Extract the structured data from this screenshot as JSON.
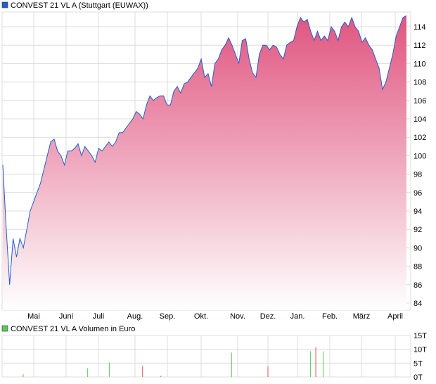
{
  "chart_data": [
    {
      "type": "area",
      "title": "CONVEST 21 VL A (Stuttgart (EUWAX))",
      "legend_color": "#1f5fcf",
      "line_color": "#1f5fcf",
      "fill_color_top": "#e0557f",
      "fill_color_bottom": "#ffffff",
      "ylim": [
        83,
        115.5
      ],
      "yticks": [
        84,
        86,
        88,
        90,
        92,
        94,
        96,
        98,
        100,
        102,
        104,
        106,
        108,
        110,
        112,
        114
      ],
      "xticks": [
        "Mai",
        "Juni",
        "Juli",
        "Aug.",
        "Sep.",
        "Okt.",
        "Nov.",
        "Dez.",
        "Jan.",
        "Feb.",
        "März",
        "April"
      ],
      "grid": true,
      "values": [
        99,
        92,
        86,
        91,
        89,
        91,
        90,
        92,
        94,
        95,
        96,
        97,
        98.5,
        100,
        101.5,
        101.8,
        100.5,
        100,
        99,
        100.5,
        100.5,
        100.8,
        101.3,
        100,
        101,
        100.5,
        100,
        99.3,
        100.8,
        100.5,
        101,
        101.5,
        101,
        101.5,
        102.5,
        102.5,
        103,
        103.5,
        104,
        104.8,
        104.5,
        104,
        105.5,
        106.5,
        106,
        106.3,
        106.5,
        106.5,
        105.5,
        105.5,
        107,
        107.5,
        106.8,
        107.8,
        108,
        108.5,
        109,
        109.5,
        110.5,
        108.5,
        108.9,
        107.5,
        110,
        110.5,
        111.5,
        112,
        112.8,
        112,
        111,
        110,
        112.5,
        112.7,
        110.5,
        109,
        108.5,
        111,
        112,
        112,
        111.5,
        112,
        111.8,
        111,
        110.5,
        112,
        112.3,
        112.5,
        114,
        115,
        114.5,
        114.8,
        113.5,
        112.5,
        113.5,
        112.5,
        113,
        112.5,
        114,
        113.5,
        112.5,
        114,
        114.5,
        114,
        115,
        114,
        113.5,
        112.3,
        112.8,
        112,
        111.5,
        110.5,
        109.5,
        107.2,
        108,
        109.5,
        111,
        113,
        114,
        115,
        115.2
      ]
    },
    {
      "type": "bar",
      "title": "CONVEST 21 VL A Volumen in Euro",
      "legend_color": "#5cc85c",
      "up_color": "#5cc85c",
      "down_color": "#e05050",
      "ylim": [
        0,
        15
      ],
      "yticks": [
        "0T",
        "5T",
        "10T",
        "15T"
      ],
      "grid": true,
      "bars": [
        {
          "date": "04-21",
          "value": 1.0,
          "dir": "up"
        },
        {
          "date": "06-21",
          "value": 3.2,
          "dir": "up"
        },
        {
          "date": "07-10",
          "value": 5.2,
          "dir": "up"
        },
        {
          "date": "08-08",
          "value": 4.0,
          "dir": "down"
        },
        {
          "date": "08-25",
          "value": 0.4,
          "dir": "down"
        },
        {
          "date": "10-26",
          "value": 8.8,
          "dir": "up"
        },
        {
          "date": "12-01",
          "value": 3.8,
          "dir": "down"
        },
        {
          "date": "01-13",
          "value": 9.3,
          "dir": "up"
        },
        {
          "date": "01-18",
          "value": 10.8,
          "dir": "down"
        },
        {
          "date": "01-25",
          "value": 9.3,
          "dir": "up"
        }
      ]
    }
  ]
}
